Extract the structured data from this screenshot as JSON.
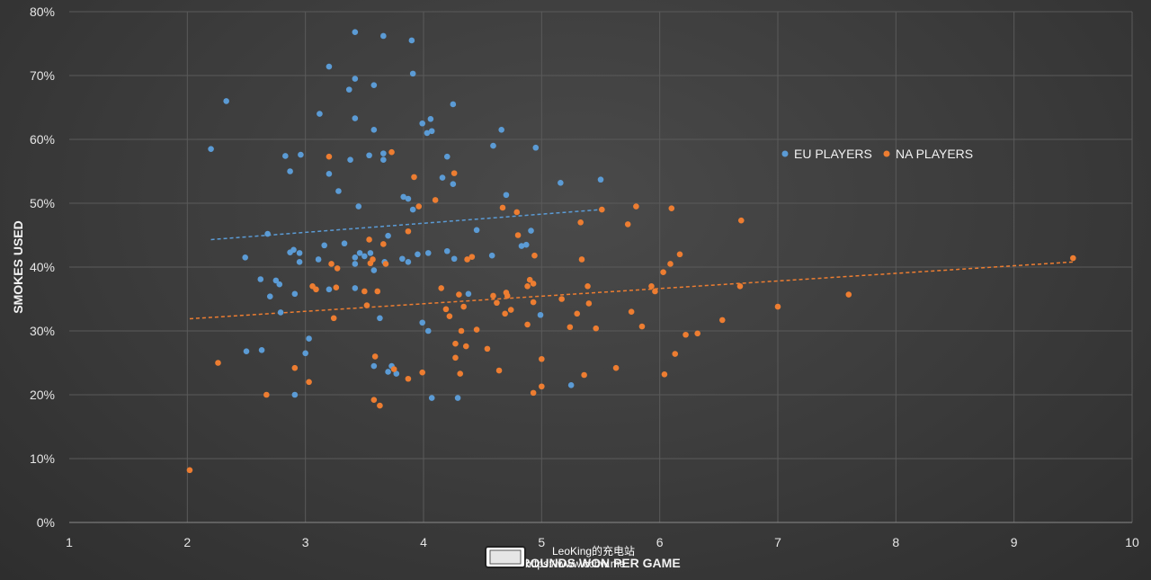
{
  "chart_data": {
    "type": "scatter",
    "title": "",
    "xlabel": "ROUNDS WON PER GAME",
    "ylabel": "SMOKES USED",
    "xlim": [
      1,
      10
    ],
    "ylim": [
      0,
      0.8
    ],
    "x_ticks": [
      "1",
      "2",
      "3",
      "4",
      "5",
      "6",
      "7",
      "8",
      "9",
      "10"
    ],
    "y_ticks": [
      "0%",
      "10%",
      "20%",
      "30%",
      "40%",
      "50%",
      "60%",
      "70%",
      "80%"
    ],
    "grid": true,
    "legend_position": "right",
    "series": [
      {
        "name": "EU PLAYERS",
        "color": "#5b9bd5",
        "trendline": {
          "x": [
            2.2,
            5.5
          ],
          "y": [
            0.443,
            0.49
          ]
        },
        "points": [
          [
            2.2,
            0.585
          ],
          [
            2.33,
            0.66
          ],
          [
            2.49,
            0.415
          ],
          [
            2.5,
            0.268
          ],
          [
            2.62,
            0.381
          ],
          [
            2.63,
            0.27
          ],
          [
            2.68,
            0.452
          ],
          [
            2.7,
            0.354
          ],
          [
            2.75,
            0.379
          ],
          [
            2.78,
            0.373
          ],
          [
            2.79,
            0.329
          ],
          [
            2.83,
            0.574
          ],
          [
            2.87,
            0.423
          ],
          [
            2.87,
            0.55
          ],
          [
            2.9,
            0.427
          ],
          [
            2.91,
            0.358
          ],
          [
            2.91,
            0.2
          ],
          [
            2.95,
            0.408
          ],
          [
            2.95,
            0.422
          ],
          [
            2.96,
            0.576
          ],
          [
            3.0,
            0.265
          ],
          [
            3.03,
            0.288
          ],
          [
            3.11,
            0.412
          ],
          [
            3.12,
            0.64
          ],
          [
            3.16,
            0.434
          ],
          [
            3.2,
            0.714
          ],
          [
            3.2,
            0.546
          ],
          [
            3.2,
            0.365
          ],
          [
            3.28,
            0.519
          ],
          [
            3.33,
            0.437
          ],
          [
            3.37,
            0.678
          ],
          [
            3.38,
            0.568
          ],
          [
            3.42,
            0.768
          ],
          [
            3.42,
            0.695
          ],
          [
            3.42,
            0.633
          ],
          [
            3.42,
            0.415
          ],
          [
            3.42,
            0.405
          ],
          [
            3.42,
            0.367
          ],
          [
            3.45,
            0.495
          ],
          [
            3.46,
            0.422
          ],
          [
            3.5,
            0.417
          ],
          [
            3.54,
            0.575
          ],
          [
            3.55,
            0.422
          ],
          [
            3.58,
            0.685
          ],
          [
            3.58,
            0.615
          ],
          [
            3.58,
            0.395
          ],
          [
            3.58,
            0.245
          ],
          [
            3.63,
            0.32
          ],
          [
            3.66,
            0.762
          ],
          [
            3.66,
            0.578
          ],
          [
            3.66,
            0.568
          ],
          [
            3.67,
            0.408
          ],
          [
            3.7,
            0.449
          ],
          [
            3.7,
            0.236
          ],
          [
            3.73,
            0.245
          ],
          [
            3.77,
            0.233
          ],
          [
            3.82,
            0.413
          ],
          [
            3.83,
            0.51
          ],
          [
            3.87,
            0.507
          ],
          [
            3.87,
            0.408
          ],
          [
            3.9,
            0.755
          ],
          [
            3.91,
            0.703
          ],
          [
            3.91,
            0.49
          ],
          [
            3.95,
            0.42
          ],
          [
            3.99,
            0.625
          ],
          [
            3.99,
            0.313
          ],
          [
            4.03,
            0.61
          ],
          [
            4.04,
            0.3
          ],
          [
            4.04,
            0.422
          ],
          [
            4.06,
            0.632
          ],
          [
            4.07,
            0.613
          ],
          [
            4.07,
            0.195
          ],
          [
            4.16,
            0.54
          ],
          [
            4.2,
            0.573
          ],
          [
            4.2,
            0.425
          ],
          [
            4.25,
            0.655
          ],
          [
            4.25,
            0.53
          ],
          [
            4.26,
            0.413
          ],
          [
            4.29,
            0.195
          ],
          [
            4.38,
            0.358
          ],
          [
            4.45,
            0.458
          ],
          [
            4.58,
            0.418
          ],
          [
            4.59,
            0.59
          ],
          [
            4.66,
            0.615
          ],
          [
            4.7,
            0.513
          ],
          [
            4.83,
            0.433
          ],
          [
            4.87,
            0.435
          ],
          [
            4.91,
            0.457
          ],
          [
            4.95,
            0.587
          ],
          [
            4.99,
            0.325
          ],
          [
            5.16,
            0.532
          ],
          [
            5.25,
            0.215
          ],
          [
            5.5,
            0.537
          ]
        ]
      },
      {
        "name": "NA PLAYERS",
        "color": "#ed7d31",
        "trendline": {
          "x": [
            2.02,
            9.5
          ],
          "y": [
            0.319,
            0.408
          ]
        },
        "points": [
          [
            2.02,
            0.082
          ],
          [
            2.26,
            0.25
          ],
          [
            2.67,
            0.2
          ],
          [
            2.91,
            0.242
          ],
          [
            3.03,
            0.22
          ],
          [
            3.06,
            0.37
          ],
          [
            3.09,
            0.365
          ],
          [
            3.2,
            0.573
          ],
          [
            3.22,
            0.405
          ],
          [
            3.24,
            0.32
          ],
          [
            3.26,
            0.368
          ],
          [
            3.27,
            0.398
          ],
          [
            3.5,
            0.362
          ],
          [
            3.52,
            0.34
          ],
          [
            3.54,
            0.443
          ],
          [
            3.55,
            0.406
          ],
          [
            3.57,
            0.412
          ],
          [
            3.58,
            0.192
          ],
          [
            3.59,
            0.26
          ],
          [
            3.61,
            0.362
          ],
          [
            3.63,
            0.183
          ],
          [
            3.66,
            0.436
          ],
          [
            3.68,
            0.405
          ],
          [
            3.73,
            0.58
          ],
          [
            3.75,
            0.24
          ],
          [
            3.87,
            0.456
          ],
          [
            3.87,
            0.225
          ],
          [
            3.92,
            0.541
          ],
          [
            3.96,
            0.495
          ],
          [
            3.99,
            0.235
          ],
          [
            4.1,
            0.505
          ],
          [
            4.15,
            0.367
          ],
          [
            4.19,
            0.334
          ],
          [
            4.22,
            0.323
          ],
          [
            4.26,
            0.547
          ],
          [
            4.27,
            0.28
          ],
          [
            4.27,
            0.258
          ],
          [
            4.3,
            0.357
          ],
          [
            4.31,
            0.233
          ],
          [
            4.32,
            0.3
          ],
          [
            4.34,
            0.338
          ],
          [
            4.36,
            0.276
          ],
          [
            4.37,
            0.412
          ],
          [
            4.41,
            0.416
          ],
          [
            4.45,
            0.302
          ],
          [
            4.54,
            0.272
          ],
          [
            4.59,
            0.355
          ],
          [
            4.62,
            0.344
          ],
          [
            4.64,
            0.238
          ],
          [
            4.67,
            0.493
          ],
          [
            4.69,
            0.327
          ],
          [
            4.7,
            0.36
          ],
          [
            4.71,
            0.355
          ],
          [
            4.74,
            0.333
          ],
          [
            4.79,
            0.486
          ],
          [
            4.8,
            0.45
          ],
          [
            4.88,
            0.31
          ],
          [
            4.88,
            0.37
          ],
          [
            4.9,
            0.38
          ],
          [
            4.93,
            0.345
          ],
          [
            4.93,
            0.374
          ],
          [
            4.93,
            0.203
          ],
          [
            4.94,
            0.418
          ],
          [
            5.0,
            0.256
          ],
          [
            5.0,
            0.213
          ],
          [
            5.17,
            0.35
          ],
          [
            5.24,
            0.306
          ],
          [
            5.3,
            0.327
          ],
          [
            5.33,
            0.47
          ],
          [
            5.34,
            0.412
          ],
          [
            5.36,
            0.231
          ],
          [
            5.39,
            0.37
          ],
          [
            5.4,
            0.343
          ],
          [
            5.46,
            0.304
          ],
          [
            5.51,
            0.49
          ],
          [
            5.63,
            0.242
          ],
          [
            5.73,
            0.467
          ],
          [
            5.76,
            0.33
          ],
          [
            5.8,
            0.495
          ],
          [
            5.85,
            0.307
          ],
          [
            5.93,
            0.37
          ],
          [
            5.96,
            0.362
          ],
          [
            6.03,
            0.392
          ],
          [
            6.04,
            0.232
          ],
          [
            6.09,
            0.405
          ],
          [
            6.1,
            0.492
          ],
          [
            6.13,
            0.264
          ],
          [
            6.17,
            0.42
          ],
          [
            6.22,
            0.294
          ],
          [
            6.32,
            0.296
          ],
          [
            6.53,
            0.317
          ],
          [
            6.68,
            0.37
          ],
          [
            6.69,
            0.473
          ],
          [
            7.0,
            0.338
          ],
          [
            7.6,
            0.357
          ],
          [
            9.5,
            0.414
          ]
        ]
      }
    ]
  },
  "watermark": {
    "line1": "LeoKing的充电站",
    "line2": "https://www.ccbw.me"
  }
}
